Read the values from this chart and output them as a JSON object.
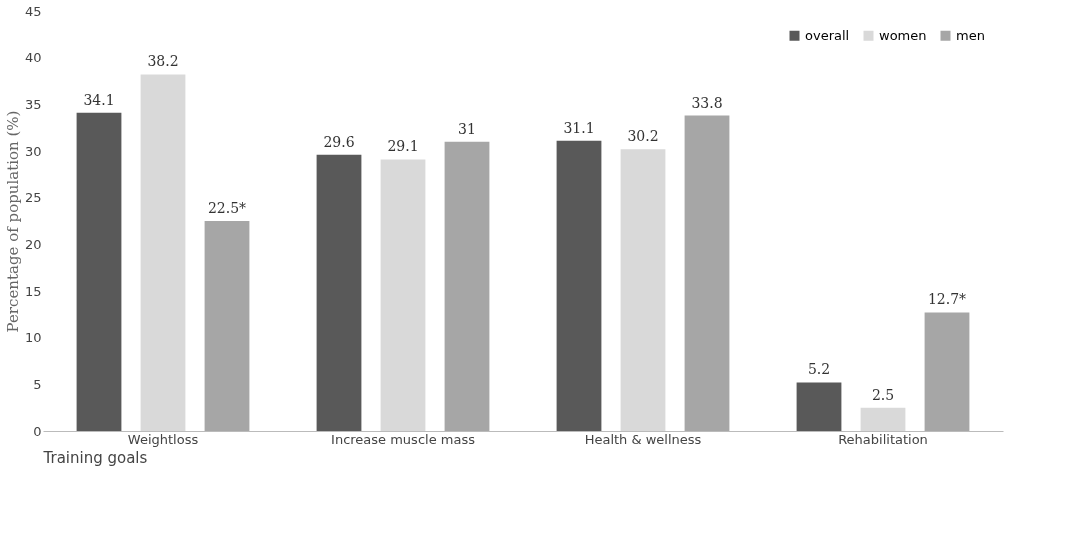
{
  "chart_data": {
    "type": "bar",
    "xlabel": "Training goals",
    "ylabel": "Percentage of population (%)",
    "categories": [
      "Weightloss",
      "Increase muscle mass",
      "Health & wellness",
      "Rehabilitation"
    ],
    "series": [
      {
        "name": "overall",
        "color": "#595959",
        "values": [
          34.1,
          29.6,
          31.1,
          5.2
        ],
        "value_labels": [
          "34.1",
          "29.6",
          "31.1",
          "5.2"
        ]
      },
      {
        "name": "women",
        "color": "#d9d9d9",
        "values": [
          38.2,
          29.1,
          30.2,
          2.5
        ],
        "value_labels": [
          "38.2",
          "29.1",
          "30.2",
          "2.5"
        ]
      },
      {
        "name": "men",
        "color": "#a6a6a6",
        "values": [
          22.5,
          31,
          33.8,
          12.7
        ],
        "value_labels": [
          "22.5*",
          "31",
          "33.8",
          "12.7*"
        ]
      }
    ],
    "ylim": [
      0,
      45
    ],
    "yticks": [
      0,
      5,
      10,
      15,
      20,
      25,
      30,
      35,
      40,
      45
    ],
    "legend": "top right"
  }
}
